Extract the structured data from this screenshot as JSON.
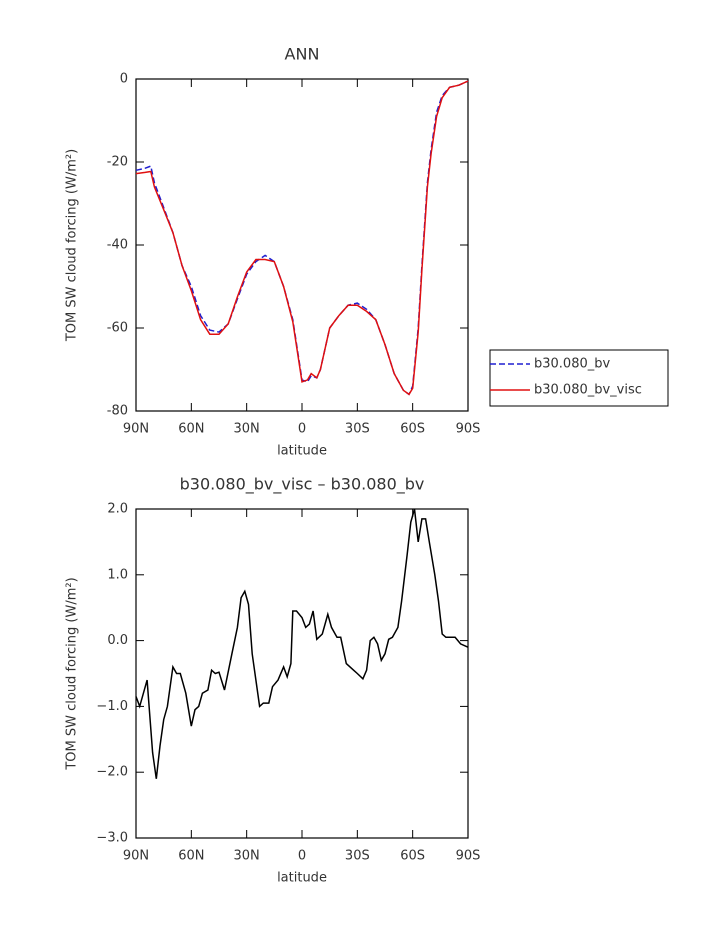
{
  "chart_data": [
    {
      "type": "line",
      "title": "ANN",
      "xlabel": "latitude",
      "ylabel": "TOM SW cloud forcing (W/m²)",
      "xlim": [
        90,
        -90
      ],
      "xticks": [
        {
          "value": 90,
          "label": "90N"
        },
        {
          "value": 60,
          "label": "60N"
        },
        {
          "value": 30,
          "label": "30N"
        },
        0,
        {
          "value": -30,
          "label": "30S"
        },
        {
          "value": -60,
          "label": "60S"
        },
        {
          "value": -90,
          "label": "90S"
        }
      ],
      "ylim": [
        -80,
        0
      ],
      "yticks": [
        -80,
        -60,
        -40,
        -20,
        0
      ],
      "legend": "right",
      "x": [
        90,
        85,
        82,
        80,
        75,
        70,
        65,
        60,
        55,
        50,
        45,
        40,
        35,
        30,
        25,
        20,
        15,
        10,
        5,
        0,
        -3,
        -5,
        -8,
        -10,
        -15,
        -20,
        -25,
        -30,
        -35,
        -40,
        -45,
        -50,
        -55,
        -58,
        -60,
        -63,
        -65,
        -68,
        -70,
        -73,
        -76,
        -80,
        -85,
        -90
      ],
      "series": [
        {
          "name": "b30.080_bv",
          "color": "#1f1fd0",
          "line_style": "dashed",
          "values": [
            -22,
            -21.5,
            -21,
            -25,
            -31,
            -37,
            -45,
            -50,
            -57,
            -60.5,
            -61,
            -59,
            -53,
            -47,
            -44,
            -42.5,
            -44,
            -50,
            -58,
            -72.5,
            -73,
            -71.5,
            -72,
            -70,
            -60,
            -57,
            -54.5,
            -54,
            -55.5,
            -58,
            -64,
            -71,
            -75,
            -76,
            -74,
            -60,
            -45,
            -25,
            -17,
            -8,
            -4,
            -2,
            -1.5,
            -0.5
          ]
        },
        {
          "name": "b30.080_bv_visc",
          "color": "#e01010",
          "line_style": "solid",
          "values": [
            -22.8,
            -22.5,
            -22.3,
            -26,
            -31.5,
            -37,
            -45,
            -51,
            -58,
            -61.5,
            -61.5,
            -59,
            -52.5,
            -46.5,
            -43.5,
            -43.5,
            -44,
            -50,
            -58.5,
            -73,
            -72.5,
            -71,
            -72,
            -70,
            -60,
            -57,
            -54.5,
            -54.5,
            -56,
            -58,
            -64,
            -71,
            -75,
            -76,
            -74.5,
            -61,
            -46,
            -26,
            -18,
            -9,
            -4.5,
            -2,
            -1.5,
            -0.5
          ]
        }
      ]
    },
    {
      "type": "line",
      "title": "b30.080_bv_visc – b30.080_bv",
      "xlabel": "latitude",
      "ylabel": "TOM SW cloud forcing (W/m²)",
      "xlim": [
        90,
        -90
      ],
      "xticks": [
        {
          "value": 90,
          "label": "90N"
        },
        {
          "value": 60,
          "label": "60N"
        },
        {
          "value": 30,
          "label": "30N"
        },
        0,
        {
          "value": -30,
          "label": "30S"
        },
        {
          "value": -60,
          "label": "60S"
        },
        {
          "value": -90,
          "label": "90S"
        }
      ],
      "ylim": [
        -3,
        2
      ],
      "yticks": [
        {
          "value": -3,
          "label": "−3.0"
        },
        {
          "value": -2,
          "label": "−2.0"
        },
        {
          "value": -1,
          "label": "−1.0"
        },
        {
          "value": 0,
          "label": "0.0"
        },
        {
          "value": 1,
          "label": "1.0"
        },
        {
          "value": 2,
          "label": "2.0"
        }
      ],
      "x": [
        90,
        88,
        84,
        81,
        79,
        77,
        75,
        73,
        70,
        68,
        66,
        63,
        60,
        58,
        56,
        54,
        51,
        49,
        47,
        45,
        42,
        38,
        35,
        33,
        31,
        29,
        27,
        25,
        23,
        21,
        18,
        16,
        13,
        10,
        8,
        6,
        5,
        3,
        0,
        -2,
        -4,
        -6,
        -8,
        -11,
        -14,
        -16,
        -19,
        -21,
        -24,
        -28,
        -30,
        -33,
        -35,
        -37,
        -39,
        -41,
        -43,
        -45,
        -47,
        -49,
        -52,
        -54,
        -57,
        -59,
        -61,
        -63,
        -65,
        -67,
        -69,
        -72,
        -74,
        -76,
        -78,
        -80,
        -83,
        -86,
        -90
      ],
      "series": [
        {
          "color": "#000000",
          "line_style": "solid",
          "values": [
            -0.85,
            -1.0,
            -0.6,
            -1.7,
            -2.1,
            -1.6,
            -1.2,
            -1.0,
            -0.4,
            -0.5,
            -0.5,
            -0.8,
            -1.3,
            -1.05,
            -1.0,
            -0.8,
            -0.75,
            -0.45,
            -0.5,
            -0.48,
            -0.75,
            -0.2,
            0.2,
            0.65,
            0.75,
            0.55,
            -0.2,
            -0.6,
            -1.0,
            -0.95,
            -0.95,
            -0.7,
            -0.6,
            -0.4,
            -0.55,
            -0.35,
            0.45,
            0.45,
            0.35,
            0.2,
            0.25,
            0.45,
            0.02,
            0.1,
            0.4,
            0.2,
            0.05,
            0.05,
            -0.35,
            -0.45,
            -0.5,
            -0.58,
            -0.45,
            0.0,
            0.05,
            -0.05,
            -0.3,
            -0.2,
            0.02,
            0.05,
            0.2,
            0.6,
            1.3,
            1.8,
            2.0,
            1.5,
            1.85,
            1.85,
            1.5,
            1.0,
            0.6,
            0.1,
            0.05,
            0.05,
            0.05,
            -0.05,
            -0.1
          ]
        }
      ]
    }
  ]
}
